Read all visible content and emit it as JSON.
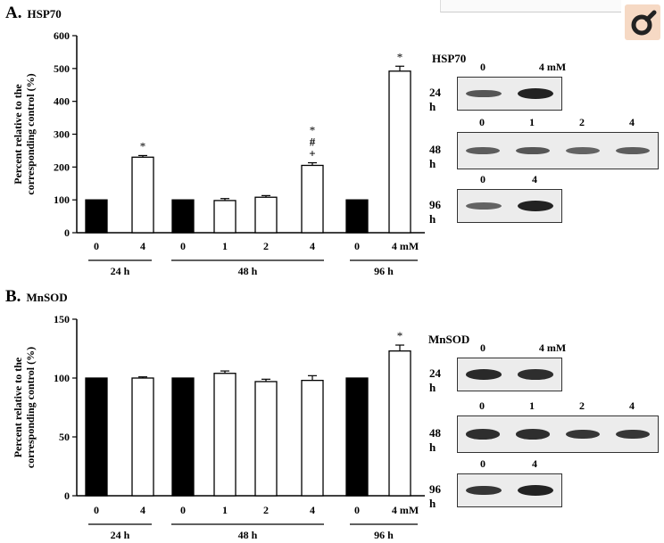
{
  "chart_data": [
    {
      "type": "bar",
      "panel": "A.",
      "title": "HSP70",
      "ylabel": "Percent relative to the corresponding control (%)",
      "ylim": [
        0,
        600
      ],
      "yticks": [
        0,
        100,
        200,
        300,
        400,
        500,
        600
      ],
      "groups": [
        {
          "label": "24 h",
          "bars": [
            {
              "label": "0",
              "value": 100,
              "err": 0,
              "fill": "black",
              "mark": ""
            },
            {
              "label": "4",
              "value": 230,
              "err": 5,
              "fill": "white",
              "mark": "*"
            }
          ]
        },
        {
          "label": "48 h",
          "bars": [
            {
              "label": "0",
              "value": 100,
              "err": 0,
              "fill": "black",
              "mark": ""
            },
            {
              "label": "1",
              "value": 98,
              "err": 6,
              "fill": "white",
              "mark": ""
            },
            {
              "label": "2",
              "value": 108,
              "err": 5,
              "fill": "white",
              "mark": ""
            },
            {
              "label": "4",
              "value": 205,
              "err": 8,
              "fill": "white",
              "mark": "*\n#\n+"
            }
          ]
        },
        {
          "label": "96 h",
          "bars": [
            {
              "label": "0",
              "value": 100,
              "err": 0,
              "fill": "black",
              "mark": ""
            },
            {
              "label": "4 mM",
              "value": 492,
              "err": 15,
              "fill": "white",
              "mark": "*"
            }
          ]
        }
      ]
    },
    {
      "type": "bar",
      "panel": "B.",
      "title": "MnSOD",
      "ylabel": "Percent relative to the corresponding control (%)",
      "ylim": [
        0,
        150
      ],
      "yticks": [
        0,
        50,
        100,
        150
      ],
      "groups": [
        {
          "label": "24 h",
          "bars": [
            {
              "label": "0",
              "value": 100,
              "err": 0,
              "fill": "black",
              "mark": ""
            },
            {
              "label": "4",
              "value": 100,
              "err": 1,
              "fill": "white",
              "mark": ""
            }
          ]
        },
        {
          "label": "48 h",
          "bars": [
            {
              "label": "0",
              "value": 100,
              "err": 0,
              "fill": "black",
              "mark": ""
            },
            {
              "label": "1",
              "value": 104,
              "err": 2,
              "fill": "white",
              "mark": ""
            },
            {
              "label": "2",
              "value": 97,
              "err": 2,
              "fill": "white",
              "mark": ""
            },
            {
              "label": "4",
              "value": 98,
              "err": 4,
              "fill": "white",
              "mark": ""
            }
          ]
        },
        {
          "label": "96 h",
          "bars": [
            {
              "label": "0",
              "value": 100,
              "err": 0,
              "fill": "black",
              "mark": ""
            },
            {
              "label": "4 mM",
              "value": 123,
              "err": 5,
              "fill": "white",
              "mark": "*"
            }
          ]
        }
      ]
    }
  ],
  "blots": [
    {
      "title": "HSP70",
      "rows": [
        {
          "time": "24 h",
          "lanes": [
            "0",
            "4 mM"
          ],
          "intensity": [
            0.6,
            1.0
          ]
        },
        {
          "time": "48 h",
          "lanes": [
            "0",
            "1",
            "2",
            "4"
          ],
          "intensity": [
            0.55,
            0.6,
            0.5,
            0.55
          ]
        },
        {
          "time": "96 h",
          "lanes": [
            "0",
            "4"
          ],
          "intensity": [
            0.5,
            1.0
          ]
        }
      ]
    },
    {
      "title": "MnSOD",
      "rows": [
        {
          "time": "24 h",
          "lanes": [
            "0",
            "4 mM"
          ],
          "intensity": [
            0.95,
            0.9
          ]
        },
        {
          "time": "48 h",
          "lanes": [
            "0",
            "1",
            "2",
            "4"
          ],
          "intensity": [
            0.9,
            0.9,
            0.85,
            0.85
          ]
        },
        {
          "time": "96 h",
          "lanes": [
            "0",
            "4"
          ],
          "intensity": [
            0.85,
            1.0
          ]
        }
      ]
    }
  ]
}
